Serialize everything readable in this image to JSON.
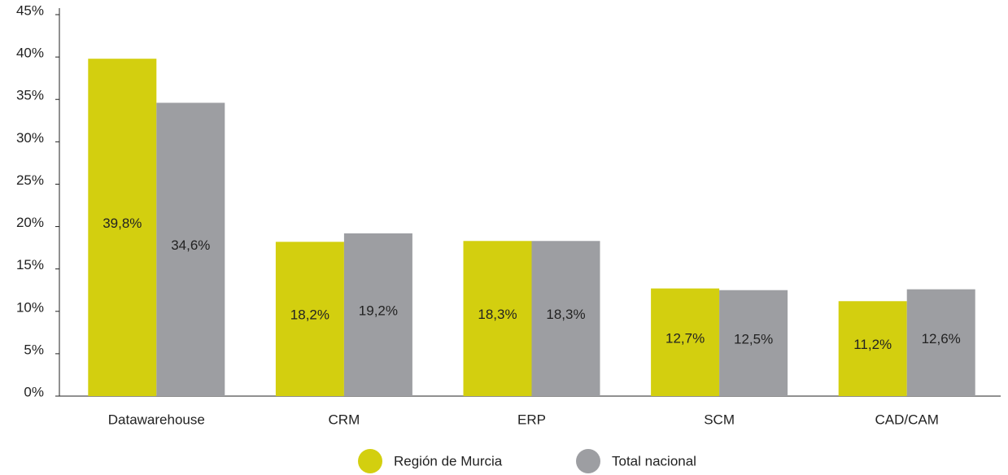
{
  "chart_data": {
    "type": "bar",
    "categories": [
      "Datawarehouse",
      "CRM",
      "ERP",
      "SCM",
      "CAD/CAM"
    ],
    "series": [
      {
        "name": "Región de Murcia",
        "color": "#d3cf0f",
        "values": [
          39.8,
          18.2,
          18.3,
          12.7,
          11.2
        ],
        "value_labels": [
          "39,8%",
          "18,2%",
          "18,3%",
          "12,7%",
          "11,2%"
        ]
      },
      {
        "name": "Total nacional",
        "color": "#9d9ea2",
        "values": [
          34.6,
          19.2,
          18.3,
          12.5,
          12.6
        ],
        "value_labels": [
          "34,6%",
          "19,2%",
          "18,3%",
          "12,5%",
          "12,6%"
        ]
      }
    ],
    "ylim": [
      0,
      45
    ],
    "yticks": [
      {
        "value": 0,
        "label": "0%"
      },
      {
        "value": 5,
        "label": "5%"
      },
      {
        "value": 10,
        "label": "10%"
      },
      {
        "value": 15,
        "label": "15%"
      },
      {
        "value": 20,
        "label": "20%"
      },
      {
        "value": 25,
        "label": "25%"
      },
      {
        "value": 30,
        "label": "30%"
      },
      {
        "value": 35,
        "label": "35%"
      },
      {
        "value": 40,
        "label": "40%"
      },
      {
        "value": 45,
        "label": "45%"
      }
    ],
    "legend": "bottom"
  }
}
